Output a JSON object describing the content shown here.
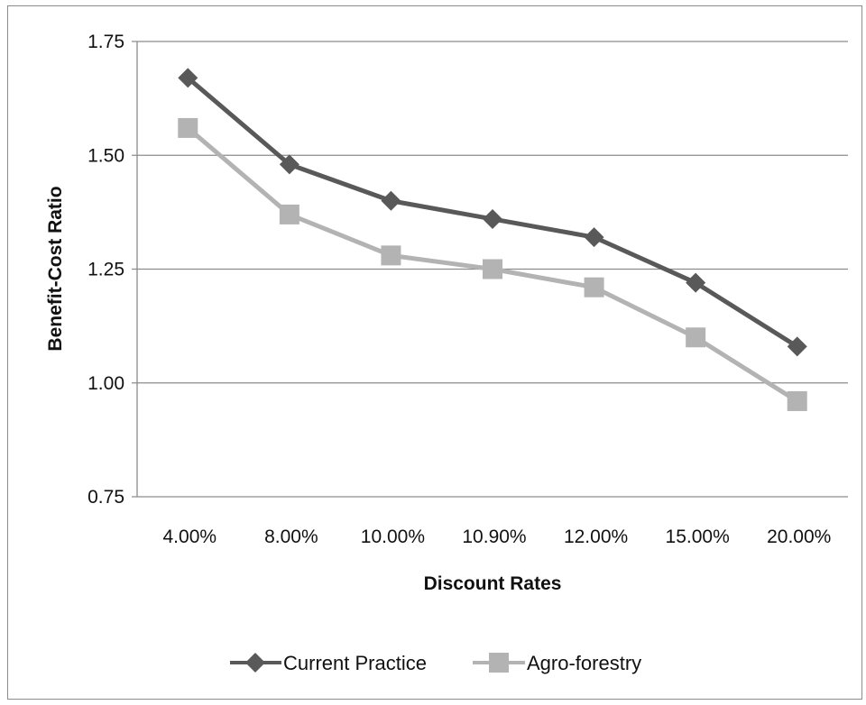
{
  "colors": {
    "current_practice": "#595959",
    "agro_forestry": "#b3b3b3",
    "gridline": "#8c8c8c",
    "frame": "#8c8c8c"
  },
  "chart_data": {
    "type": "line",
    "title": "",
    "xlabel": "Discount Rates",
    "ylabel": "Benefit-Cost Ratio",
    "categories": [
      "4.00%",
      "8.00%",
      "10.00%",
      "10.90%",
      "12.00%",
      "15.00%",
      "20.00%"
    ],
    "ylim": [
      0.75,
      1.75
    ],
    "yticks": [
      0.75,
      1.0,
      1.25,
      1.5,
      1.75
    ],
    "ytick_labels": [
      "0.75",
      "1.00",
      "1.25",
      "1.50",
      "1.75"
    ],
    "grid": "horizontal",
    "legend_position": "bottom",
    "series": [
      {
        "name": "Current Practice",
        "marker": "diamond",
        "color": "#595959",
        "values": [
          1.67,
          1.48,
          1.4,
          1.36,
          1.32,
          1.22,
          1.08
        ]
      },
      {
        "name": "Agro-forestry",
        "marker": "square",
        "color": "#b3b3b3",
        "values": [
          1.56,
          1.37,
          1.28,
          1.25,
          1.21,
          1.1,
          0.96
        ]
      }
    ]
  }
}
